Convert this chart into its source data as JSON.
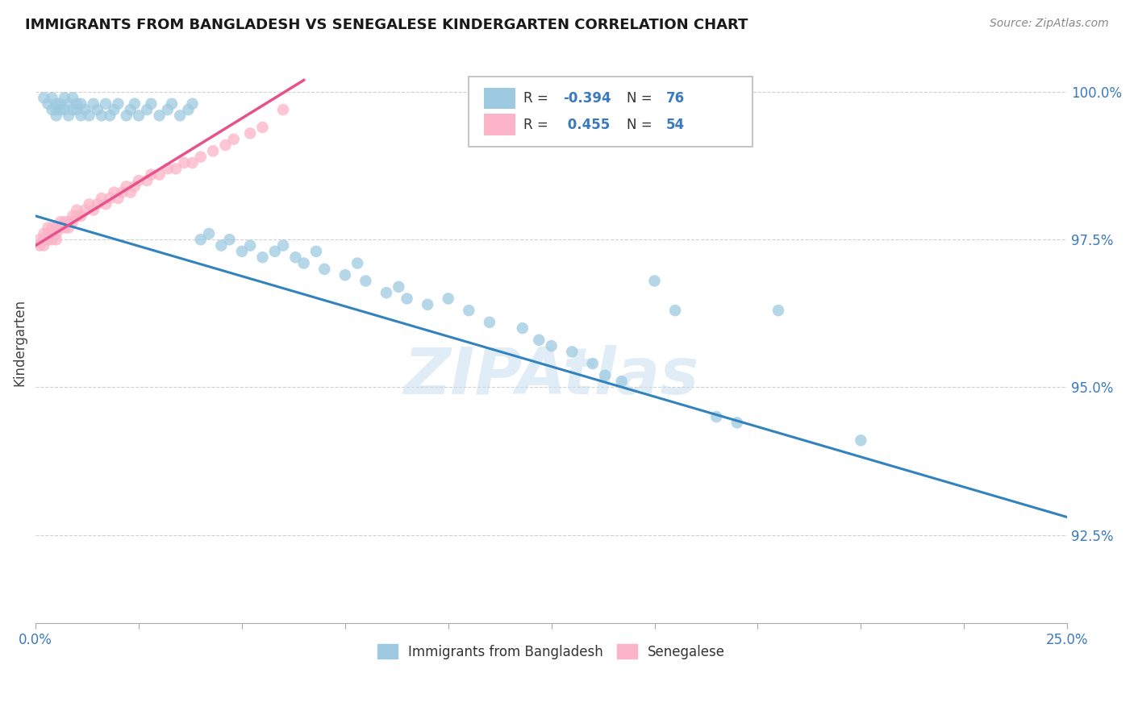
{
  "title": "IMMIGRANTS FROM BANGLADESH VS SENEGALESE KINDERGARTEN CORRELATION CHART",
  "source": "Source: ZipAtlas.com",
  "ylabel": "Kindergarten",
  "xlim": [
    0.0,
    0.25
  ],
  "ylim": [
    0.91,
    1.005
  ],
  "xticks": [
    0.0,
    0.025,
    0.05,
    0.075,
    0.1,
    0.125,
    0.15,
    0.175,
    0.2,
    0.225,
    0.25
  ],
  "xticklabels": [
    "0.0%",
    "",
    "",
    "",
    "",
    "",
    "",
    "",
    "",
    "",
    "25.0%"
  ],
  "yticks": [
    0.925,
    0.95,
    0.975,
    1.0
  ],
  "yticklabels": [
    "92.5%",
    "95.0%",
    "97.5%",
    "100.0%"
  ],
  "blue_color": "#9ecae1",
  "pink_color": "#fbb4c8",
  "blue_line_color": "#3182bd",
  "pink_line_color": "#e6538a",
  "R_blue": -0.394,
  "N_blue": 76,
  "R_pink": 0.455,
  "N_pink": 54,
  "blue_line_x0": 0.0,
  "blue_line_y0": 0.979,
  "blue_line_x1": 0.25,
  "blue_line_y1": 0.928,
  "pink_line_x0": 0.0,
  "pink_line_y0": 0.974,
  "pink_line_x1": 0.065,
  "pink_line_y1": 1.002,
  "watermark_text": "ZIPAtlas",
  "watermark_color": "#c8dff0",
  "legend_label1": "Immigrants from Bangladesh",
  "legend_label2": "Senegalese"
}
